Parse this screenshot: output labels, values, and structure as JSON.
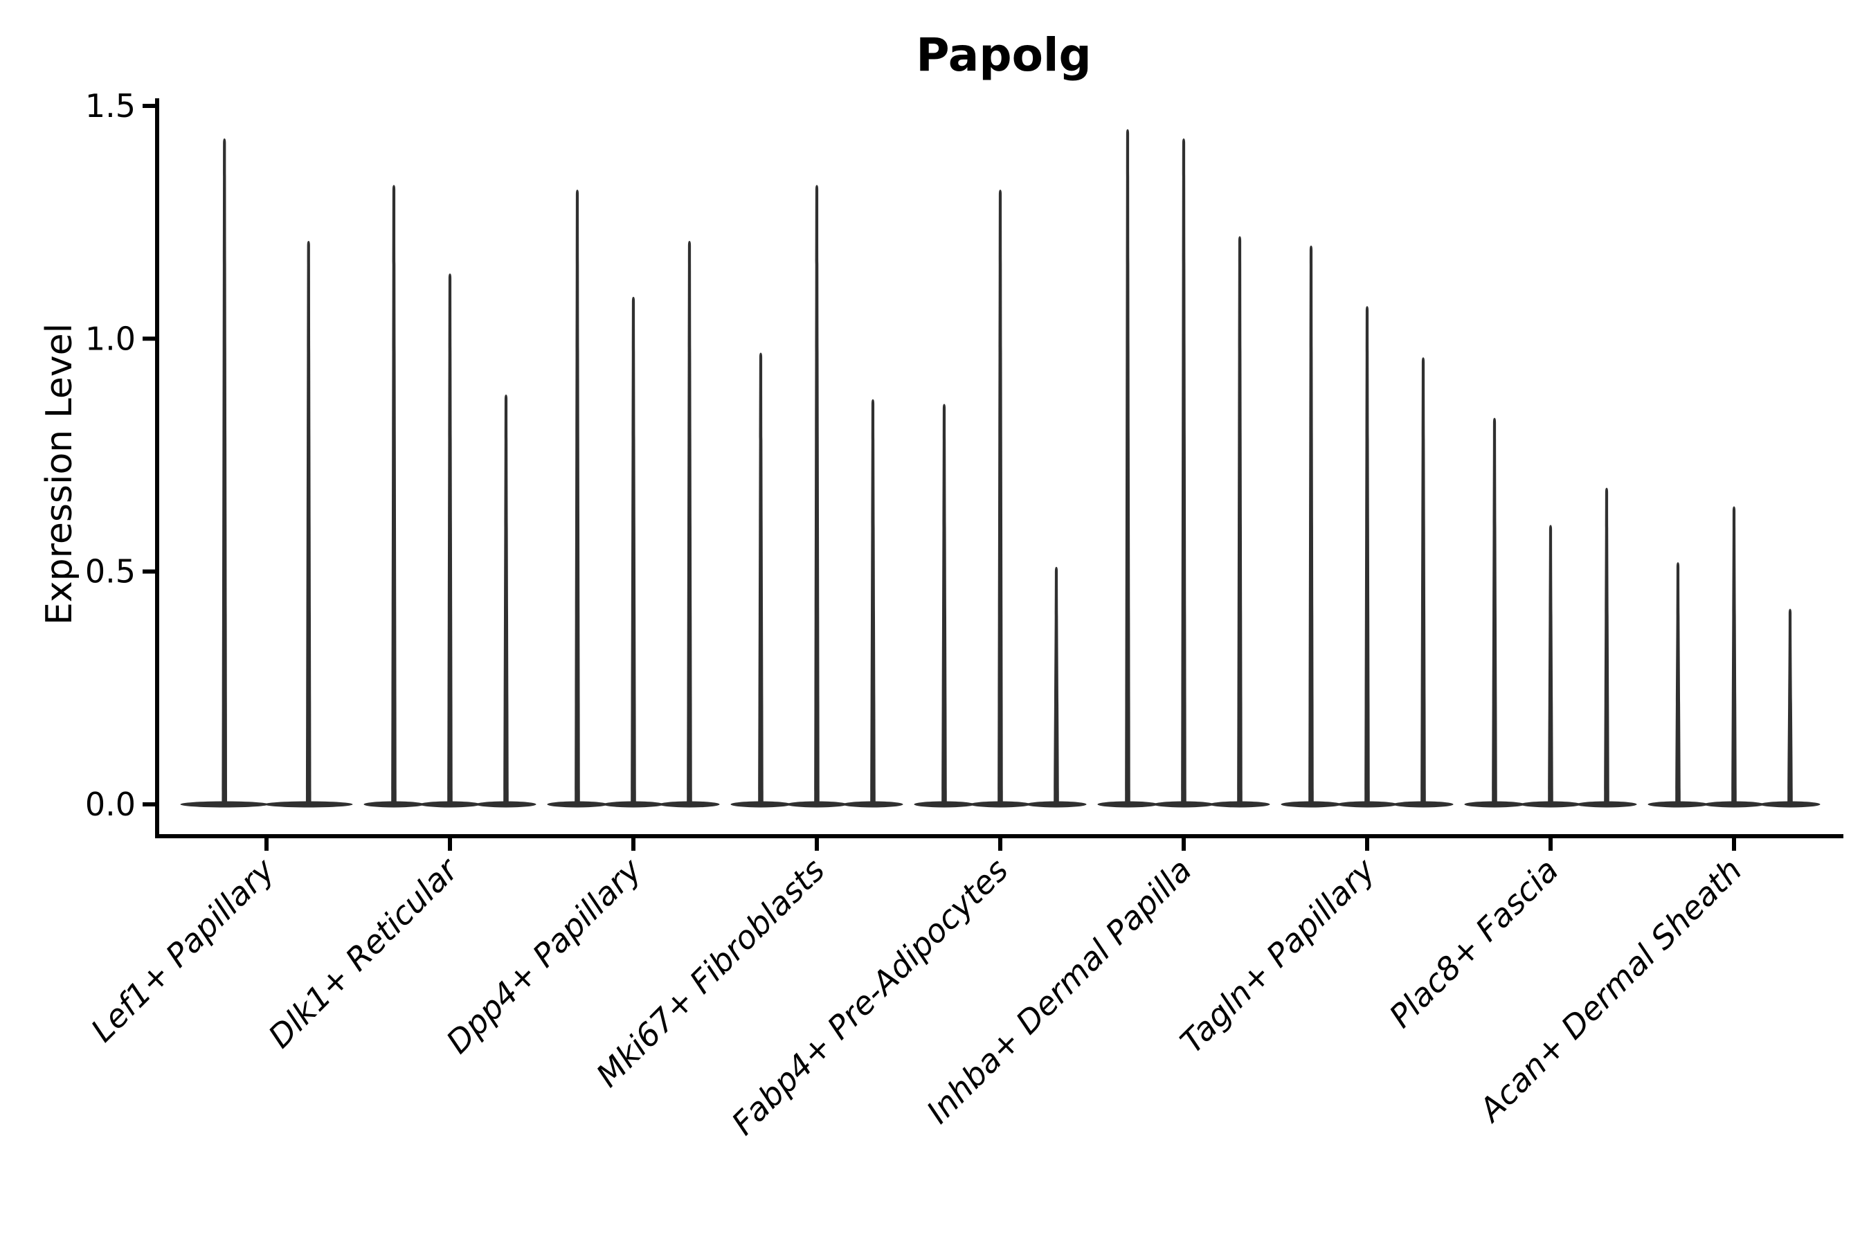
{
  "chart_data": {
    "type": "violin",
    "title": "Papolg",
    "xlabel": "",
    "ylabel": "Expression Level",
    "categories": [
      "Lef1+ Papillary",
      "Dlk1+ Reticular",
      "Dpp4+ Papillary",
      "Mki67+ Fibroblasts",
      "Fabp4+ Pre-Adipocytes",
      "Inhba+ Dermal Papilla",
      "Tagln+ Papillary",
      "Plac8+ Fascia",
      "Acan+ Dermal Sheath"
    ],
    "groups": [
      {
        "label": "Lef1+ Papillary",
        "violin_max_values": [
          1.43,
          1.21
        ]
      },
      {
        "label": "Dlk1+ Reticular",
        "violin_max_values": [
          1.33,
          1.14,
          0.88
        ]
      },
      {
        "label": "Dpp4+ Papillary",
        "violin_max_values": [
          1.32,
          1.09,
          1.21
        ]
      },
      {
        "label": "Mki67+ Fibroblasts",
        "violin_max_values": [
          0.97,
          1.33,
          0.87
        ]
      },
      {
        "label": "Fabp4+ Pre-Adipocytes",
        "violin_max_values": [
          0.86,
          1.32,
          0.51
        ]
      },
      {
        "label": "Inhba+ Dermal Papilla",
        "violin_max_values": [
          1.45,
          1.43,
          1.22
        ]
      },
      {
        "label": "Tagln+ Papillary",
        "violin_max_values": [
          1.2,
          1.07,
          0.96
        ]
      },
      {
        "label": "Plac8+ Fascia",
        "violin_max_values": [
          0.83,
          0.6,
          0.68
        ]
      },
      {
        "label": "Acan+ Dermal Sheath",
        "violin_max_values": [
          0.52,
          0.64,
          0.42
        ]
      }
    ],
    "violin_baseline_value": 0.0,
    "yticks": [
      0.0,
      0.5,
      1.0,
      1.5
    ],
    "ytick_labels": [
      "0.0",
      "0.5",
      "1.0",
      "1.5"
    ],
    "ylim": [
      0.0,
      1.52
    ],
    "grid": false,
    "legend": "none",
    "colors": {
      "violin_fill": "#303030",
      "axis": "#000000",
      "text": "#000000",
      "background": "#ffffff"
    }
  }
}
